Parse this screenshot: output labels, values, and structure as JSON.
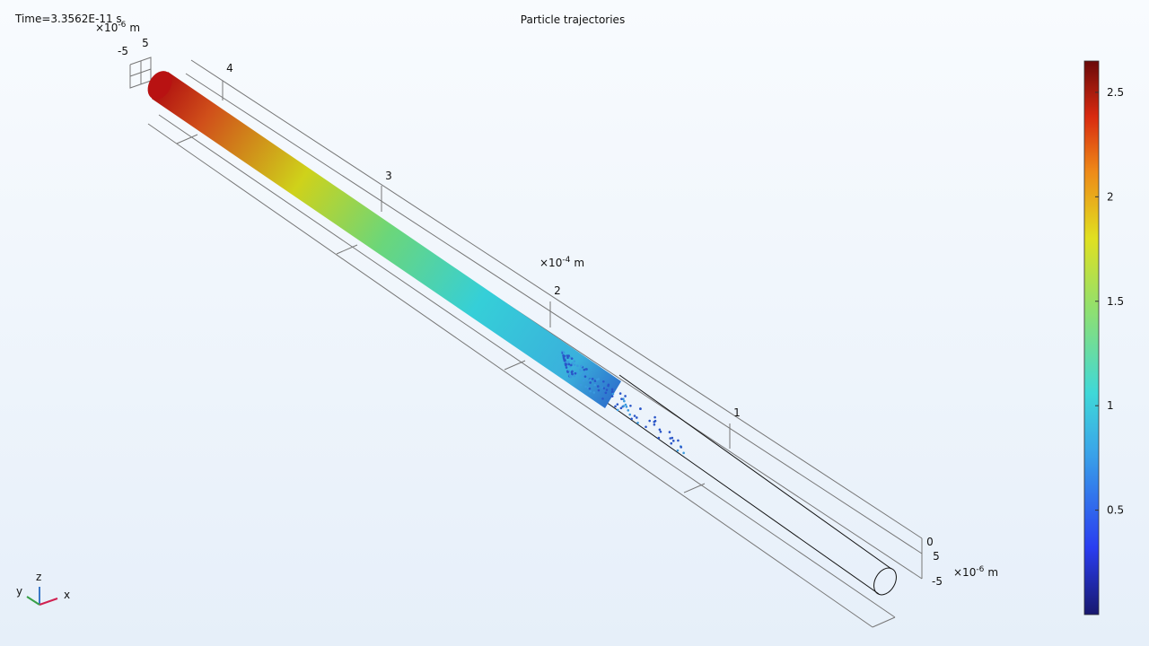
{
  "header": {
    "time": "Time=3.3562E-11 s",
    "title": "Particle trajectories"
  },
  "axes": {
    "x": {
      "ticks": [
        "1",
        "2",
        "3",
        "4"
      ],
      "multiplier": {
        "base": "×10",
        "exponent": "-4",
        "unit": "m"
      }
    },
    "y": {
      "ticks": [
        "0",
        "5",
        "-5"
      ],
      "multiplier": {
        "base": "×10",
        "exponent": "-6",
        "unit": "m"
      }
    },
    "z": {
      "ticks": [
        "5",
        "-5"
      ],
      "multiplier": {
        "base": "×10",
        "exponent": "-6",
        "unit": "m"
      }
    }
  },
  "colorbar": {
    "range": [
      0,
      2.65
    ],
    "ticks": [
      0.5,
      1,
      1.5,
      2,
      2.5
    ]
  },
  "triad": {
    "x": "x",
    "y": "y",
    "z": "z"
  }
}
